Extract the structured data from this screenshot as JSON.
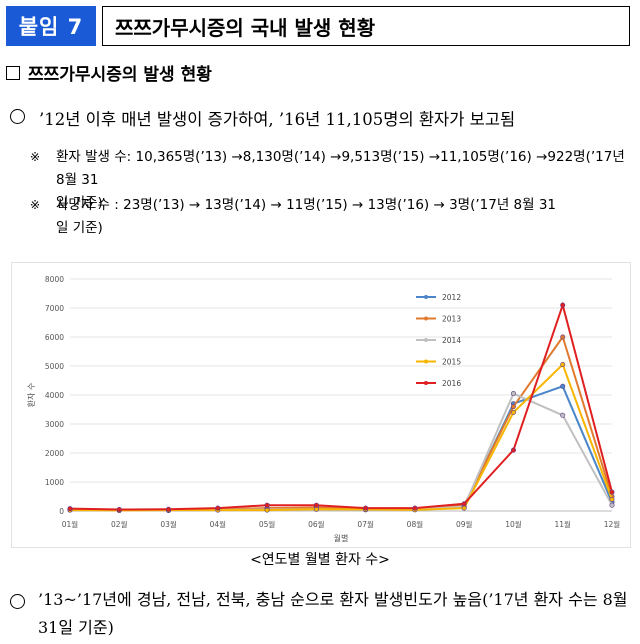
{
  "header": {
    "tag": "붙임 7",
    "title": "쯔쯔가무시증의 국내 발생 현황"
  },
  "section": {
    "title": "쯔쯔가무시증의 발생 현황"
  },
  "bullet1": "’12년 이후 매년 발생이 증가하여, ’16년 11,105명의 환자가 보고됨",
  "notes": [
    {
      "mark": "※",
      "line1": "환자 발생 수: 10,365명(’13) →8,130명(’14) →9,513명(’15) →11,105명(’16) →922명(’17년 8월 31",
      "line2": "일 기준)"
    },
    {
      "mark": "※",
      "line1": "사망자 수 : 23명(’13) → 13명(’14) → 11명(’15) → 13명(’16) → 3명(’17년 8월 31",
      "line2": "일 기준)"
    }
  ],
  "chart_caption": "<연도별 월별 환자 수>",
  "bullet2": "’13~’17년에 경남, 전남, 전북, 충남 순으로 환자 발생빈도가 높음(’17년 환자 수는 8월 31일 기준)",
  "chart_data": {
    "type": "line",
    "title": "",
    "xlabel": "월별",
    "ylabel": "환자 수",
    "ylim": [
      0,
      8000
    ],
    "yticks": [
      "0",
      "1000",
      "2000",
      "3000",
      "4000",
      "5000",
      "6000",
      "7000",
      "8000"
    ],
    "categories": [
      "01월",
      "02월",
      "03월",
      "04월",
      "05월",
      "06월",
      "07월",
      "08월",
      "09월",
      "10월",
      "11월",
      "12월"
    ],
    "legend_position": "top-right",
    "series": [
      {
        "name": "2012",
        "color": "#4a86c8",
        "values": [
          30,
          20,
          20,
          40,
          60,
          80,
          50,
          50,
          150,
          3700,
          4300,
          300
        ]
      },
      {
        "name": "2013",
        "color": "#e07a2e",
        "values": [
          50,
          30,
          30,
          60,
          100,
          120,
          80,
          80,
          200,
          3600,
          6000,
          500
        ]
      },
      {
        "name": "2014",
        "color": "#c0c0c0",
        "values": [
          40,
          20,
          20,
          40,
          50,
          60,
          40,
          50,
          150,
          4050,
          3300,
          200
        ]
      },
      {
        "name": "2015",
        "color": "#f7b500",
        "values": [
          30,
          20,
          30,
          30,
          30,
          60,
          50,
          40,
          100,
          3400,
          5050,
          400
        ]
      },
      {
        "name": "2016",
        "color": "#e02020",
        "values": [
          80,
          50,
          60,
          100,
          200,
          200,
          100,
          100,
          250,
          2100,
          7100,
          650
        ]
      }
    ]
  }
}
